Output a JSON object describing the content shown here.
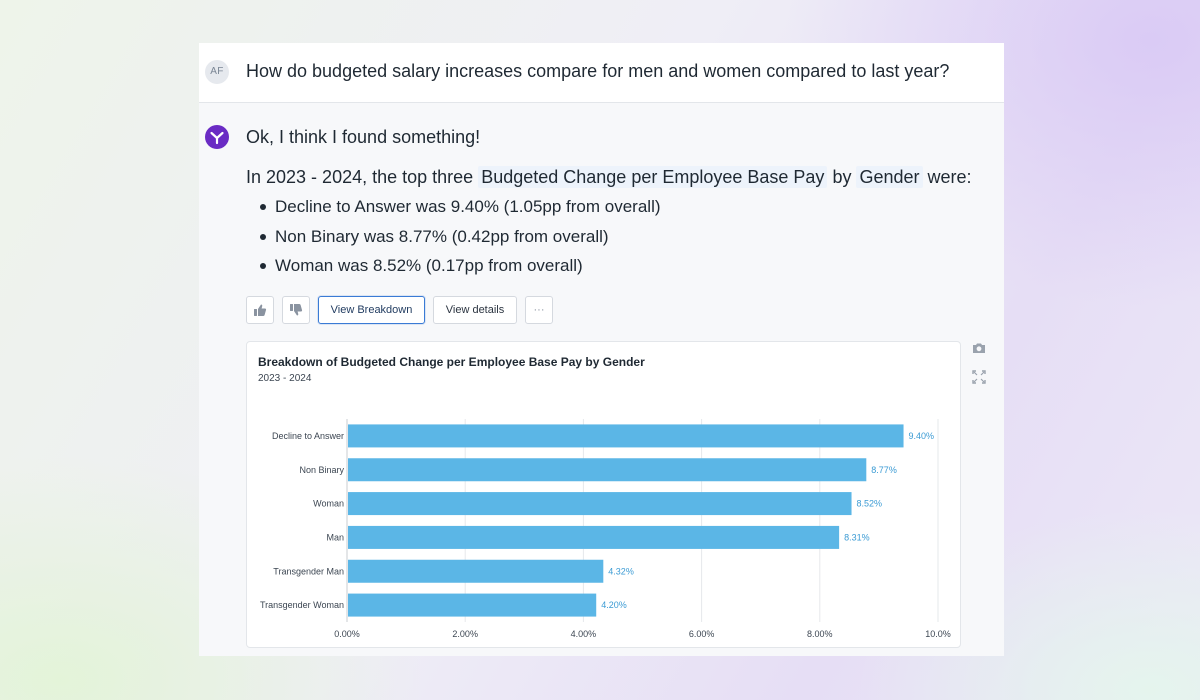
{
  "conversation": {
    "user_avatar": "AF",
    "question": "How do budgeted salary increases compare for men and women compared to last year?",
    "answer_intro": "Ok, I think I found something!",
    "answer_prefix": "In 2023 - 2024, the top three",
    "answer_tag_metric": "Budgeted Change per Employee Base Pay",
    "answer_by": "by",
    "answer_tag_dimension": "Gender",
    "answer_suffix": "were:",
    "bullets": [
      "Decline to Answer was 9.40% (1.05pp from overall)",
      "Non Binary was 8.77% (0.42pp from overall)",
      "Woman was 8.52% (0.17pp from overall)"
    ]
  },
  "actions": {
    "thumbs_up_icon": "thumbs-up-icon",
    "thumbs_down_icon": "thumbs-down-icon",
    "view_breakdown": "View Breakdown",
    "view_details": "View details",
    "more": "···"
  },
  "side_icons": [
    "camera-icon",
    "expand-icon"
  ],
  "colors": {
    "bar": "#5bb6e6",
    "value_label": "#3b9bd4",
    "bot_logo": "#6a2bc4",
    "primary_border": "#3a7bd5"
  },
  "chart_data": {
    "type": "bar",
    "orientation": "horizontal",
    "title": "Breakdown of Budgeted Change per Employee Base Pay by Gender",
    "subtitle": "2023 - 2024",
    "categories": [
      "Decline to Answer",
      "Non Binary",
      "Woman",
      "Man",
      "Transgender Man",
      "Transgender Woman"
    ],
    "values": [
      9.4,
      8.77,
      8.52,
      8.31,
      4.32,
      4.2
    ],
    "value_labels": [
      "9.40%",
      "8.77%",
      "8.52%",
      "8.31%",
      "4.32%",
      "4.20%"
    ],
    "x_ticks": [
      "0.00%",
      "2.00%",
      "4.00%",
      "6.00%",
      "8.00%",
      "10.0%"
    ],
    "xlim": [
      0,
      10
    ],
    "grid": true
  }
}
